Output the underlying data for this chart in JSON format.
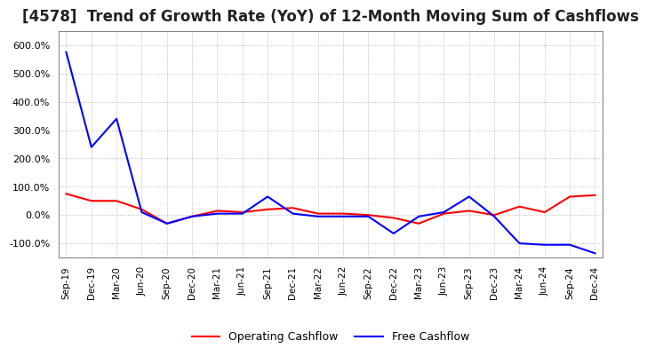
{
  "title": "[4578]  Trend of Growth Rate (YoY) of 12-Month Moving Sum of Cashflows",
  "title_fontsize": 12,
  "ylim": [
    -150,
    650
  ],
  "yticks": [
    -100,
    0,
    100,
    200,
    300,
    400,
    500,
    600
  ],
  "background_color": "#ffffff",
  "grid_color": "#aaaaaa",
  "legend_labels": [
    "Operating Cashflow",
    "Free Cashflow"
  ],
  "legend_colors": [
    "#ff0000",
    "#0000ff"
  ],
  "x_labels": [
    "Sep-19",
    "Dec-19",
    "Mar-20",
    "Jun-20",
    "Sep-20",
    "Dec-20",
    "Mar-21",
    "Jun-21",
    "Sep-21",
    "Dec-21",
    "Mar-22",
    "Jun-22",
    "Sep-22",
    "Dec-22",
    "Mar-23",
    "Jun-23",
    "Sep-23",
    "Dec-23",
    "Mar-24",
    "Jun-24",
    "Sep-24",
    "Dec-24"
  ],
  "operating_cashflow": [
    75,
    50,
    50,
    20,
    -30,
    -5,
    15,
    10,
    20,
    25,
    5,
    5,
    0,
    -10,
    -30,
    5,
    15,
    0,
    30,
    10,
    65,
    70
  ],
  "free_cashflow": [
    575,
    240,
    340,
    10,
    -30,
    -5,
    5,
    5,
    65,
    5,
    -5,
    -5,
    -5,
    -65,
    -5,
    10,
    65,
    -5,
    -100,
    -105,
    -105,
    -135
  ]
}
